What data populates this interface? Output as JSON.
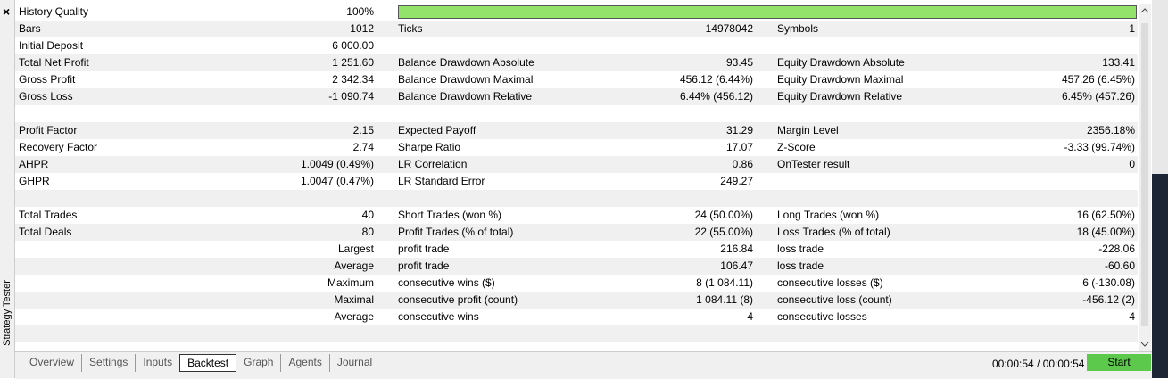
{
  "sidebar_title": "Strategy Tester",
  "close_button": "×",
  "history_quality": {
    "label": "History Quality",
    "value": "100%"
  },
  "sections": [
    [
      [
        "Bars",
        "1012",
        "Ticks",
        "14978042",
        "Symbols",
        "1"
      ],
      [
        "Initial Deposit",
        "6 000.00",
        null,
        null,
        null,
        null
      ],
      [
        "Total Net Profit",
        "1 251.60",
        "Balance Drawdown Absolute",
        "93.45",
        "Equity Drawdown Absolute",
        "133.41"
      ],
      [
        "Gross Profit",
        "2 342.34",
        "Balance Drawdown Maximal",
        "456.12 (6.44%)",
        "Equity Drawdown Maximal",
        "457.26 (6.45%)"
      ],
      [
        "Gross Loss",
        "-1 090.74",
        "Balance Drawdown Relative",
        "6.44% (456.12)",
        "Equity Drawdown Relative",
        "6.45% (457.26)"
      ]
    ],
    [
      [
        "Profit Factor",
        "2.15",
        "Expected Payoff",
        "31.29",
        "Margin Level",
        "2356.18%"
      ],
      [
        "Recovery Factor",
        "2.74",
        "Sharpe Ratio",
        "17.07",
        "Z-Score",
        "-3.33 (99.74%)"
      ],
      [
        "AHPR",
        "1.0049 (0.49%)",
        "LR Correlation",
        "0.86",
        "OnTester result",
        "0"
      ],
      [
        "GHPR",
        "1.0047 (0.47%)",
        "LR Standard Error",
        "249.27",
        null,
        null
      ]
    ],
    [
      [
        "Total Trades",
        "40",
        "Short Trades (won %)",
        "24 (50.00%)",
        "Long Trades (won %)",
        "16 (62.50%)"
      ],
      [
        "Total Deals",
        "80",
        "Profit Trades (% of total)",
        "22 (55.00%)",
        "Loss Trades (% of total)",
        "18 (45.00%)"
      ],
      [
        null,
        "Largest",
        "profit trade",
        "216.84",
        "loss trade",
        "-228.06"
      ],
      [
        null,
        "Average",
        "profit trade",
        "106.47",
        "loss trade",
        "-60.60"
      ],
      [
        null,
        "Maximum",
        "consecutive wins ($)",
        "8 (1 084.11)",
        "consecutive losses ($)",
        "6 (-130.08)"
      ],
      [
        null,
        "Maximal",
        "consecutive profit (count)",
        "1 084.11 (8)",
        "consecutive loss (count)",
        "-456.12 (2)"
      ],
      [
        null,
        "Average",
        "consecutive wins",
        "4",
        "consecutive losses",
        "4"
      ]
    ]
  ],
  "tabs": [
    "Overview",
    "Settings",
    "Inputs",
    "Backtest",
    "Graph",
    "Agents",
    "Journal"
  ],
  "selected_tab": 3,
  "elapsed_time": "00:00:54 / 00:00:54",
  "start_button": "Start"
}
